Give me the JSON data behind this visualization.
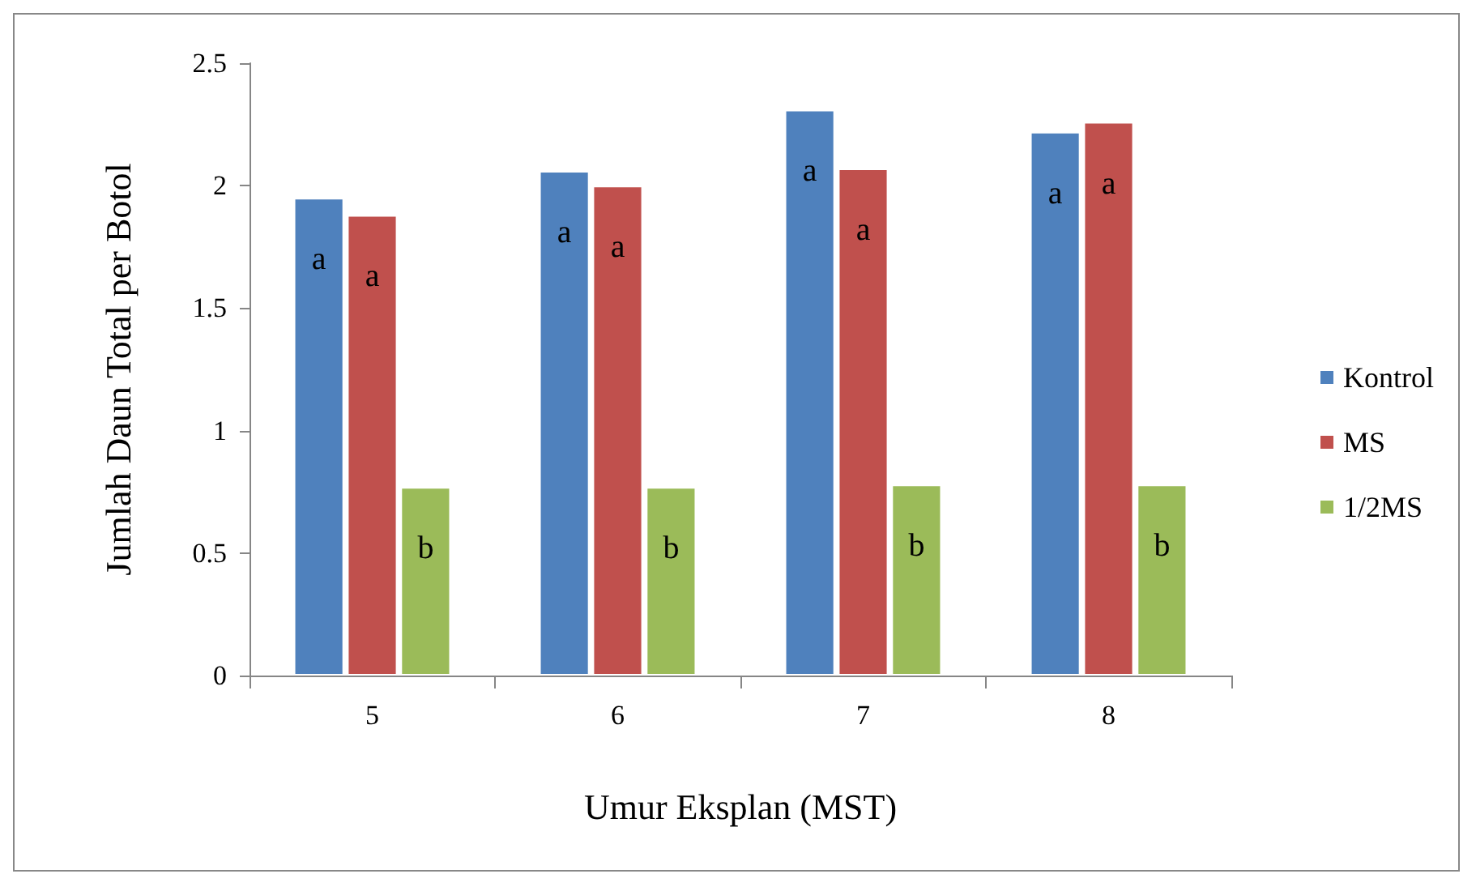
{
  "chart_data": {
    "type": "bar",
    "xlabel": "Umur Eksplan (MST)",
    "ylabel": "Jumlah Daun Total per Botol",
    "categories": [
      "5",
      "6",
      "7",
      "8"
    ],
    "series": [
      {
        "name": "Kontrol",
        "color": "#4f81bd",
        "values": [
          1.95,
          2.06,
          2.31,
          2.22
        ],
        "value_labels": [
          "a",
          "a",
          "a",
          "a"
        ]
      },
      {
        "name": "MS",
        "color": "#c0504d",
        "values": [
          1.88,
          2.0,
          2.07,
          2.26
        ],
        "value_labels": [
          "a",
          "a",
          "a",
          "a"
        ]
      },
      {
        "name": "1/2MS",
        "color": "#9bbb59",
        "values": [
          0.77,
          0.77,
          0.78,
          0.78
        ],
        "value_labels": [
          "b",
          "b",
          "b",
          "b"
        ]
      }
    ],
    "ylim": [
      0,
      2.5
    ],
    "yticks": [
      0,
      0.5,
      1,
      1.5,
      2,
      2.5
    ],
    "grid": false,
    "legend": "right"
  }
}
